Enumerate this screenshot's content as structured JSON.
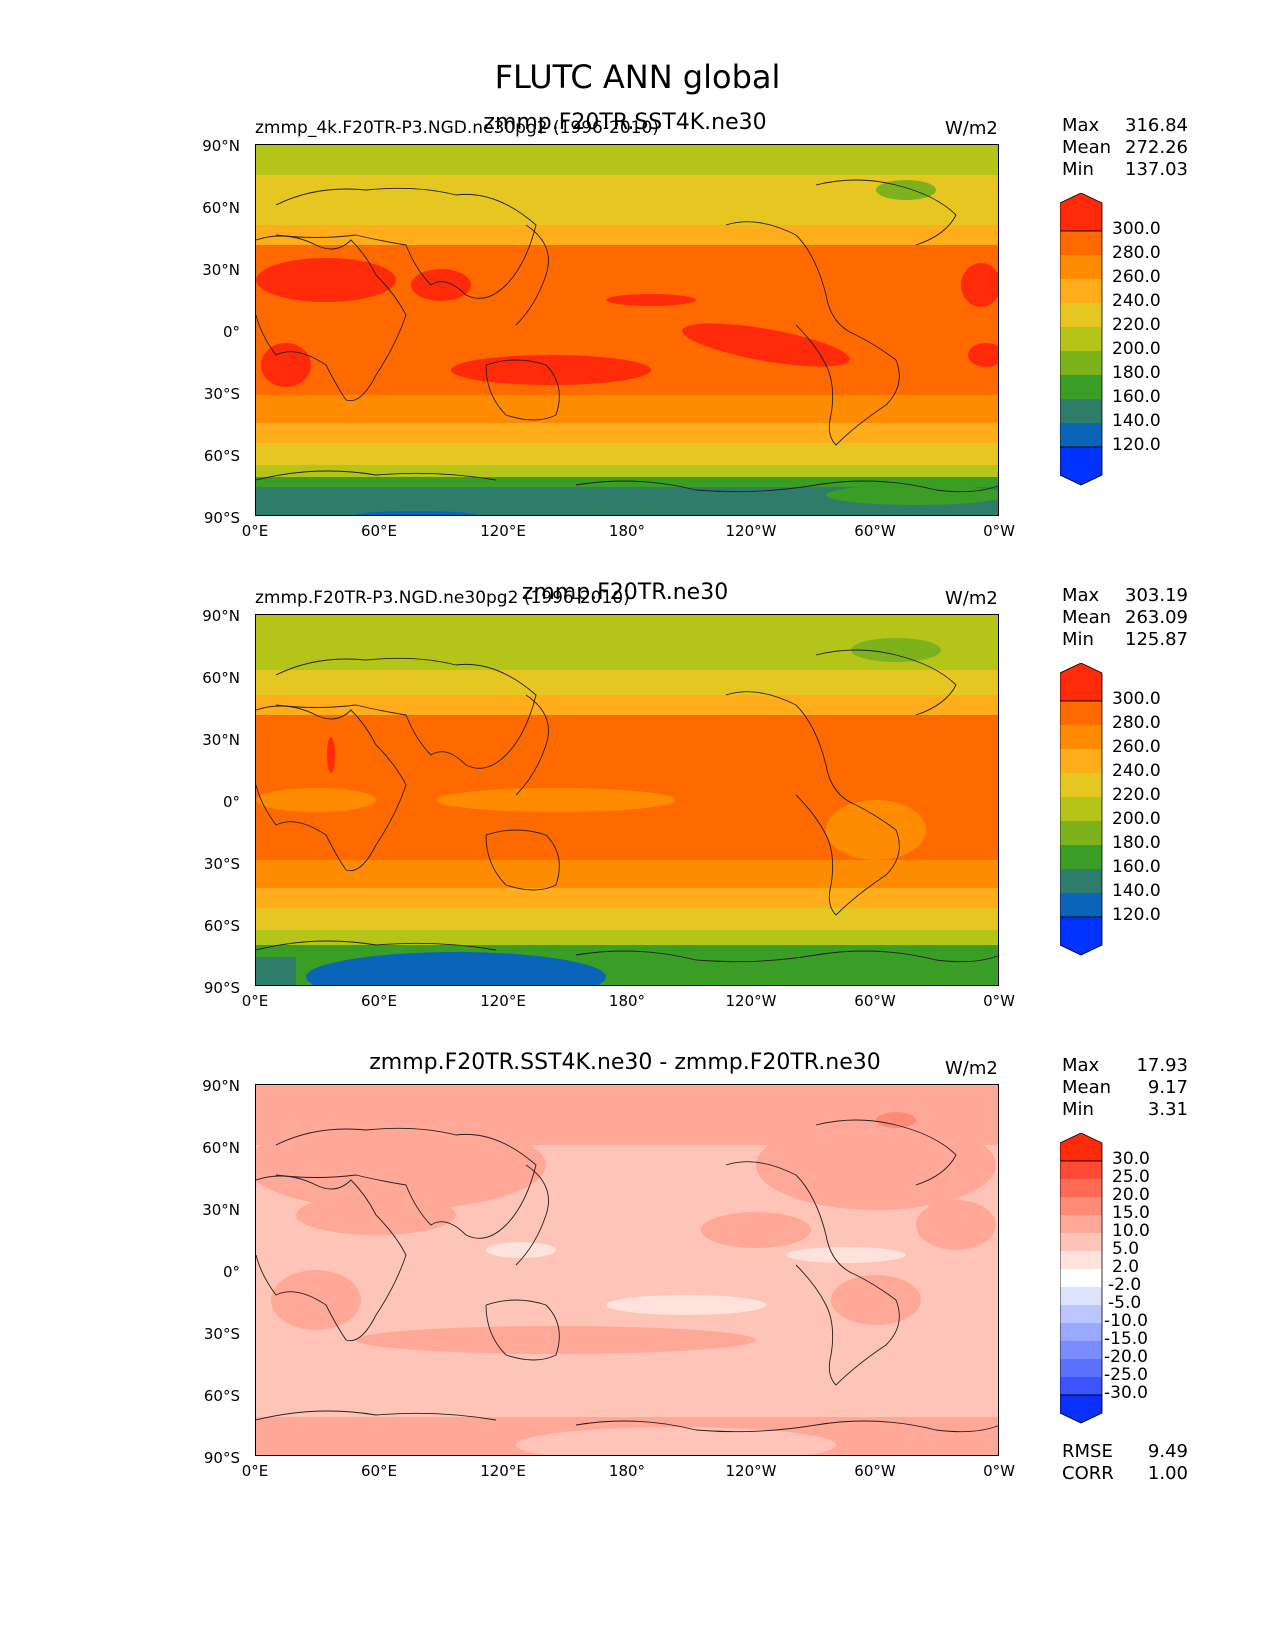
{
  "figure": {
    "title": "FLUTC ANN global"
  },
  "axes": {
    "lat_ticks": [
      "90°N",
      "60°N",
      "30°N",
      "0°",
      "30°S",
      "60°S",
      "90°S"
    ],
    "lon_ticks": [
      "0°E",
      "60°E",
      "120°E",
      "180°",
      "120°W",
      "60°W",
      "0°W"
    ]
  },
  "panels": [
    {
      "id": "test",
      "left_title": "zmmp_4k.F20TR-P3.NGD.ne30pg2 (1996-2010)",
      "center_title": "zmmp.F20TR.SST4K.ne30",
      "units": "W/m2",
      "stats": [
        {
          "label": "Max",
          "value": "316.84"
        },
        {
          "label": "Mean",
          "value": "272.26"
        },
        {
          "label": "Min",
          "value": "137.03"
        }
      ],
      "colorbar": {
        "levels": [
          "300.0",
          "280.0",
          "260.0",
          "240.0",
          "220.0",
          "200.0",
          "180.0",
          "160.0",
          "140.0",
          "120.0"
        ],
        "colors": [
          "#ff2a0a",
          "#ff6a00",
          "#ff8c00",
          "#ffad1a",
          "#e6c620",
          "#b5c418",
          "#7db21c",
          "#3a9e26",
          "#2e7d6a",
          "#0a64b8",
          "#0033ff"
        ]
      },
      "field_levels": [
        "#ff2a0a",
        "#ff6a00",
        "#ff8c00",
        "#ffad1a",
        "#e6c620",
        "#b5c418",
        "#7db21c",
        "#3a9e26",
        "#2e7d6a",
        "#0a64b8"
      ]
    },
    {
      "id": "ref",
      "left_title": "zmmp.F20TR-P3.NGD.ne30pg2 (1996-2010)",
      "center_title": "zmmp.F20TR.ne30",
      "units": "W/m2",
      "stats": [
        {
          "label": "Max",
          "value": "303.19"
        },
        {
          "label": "Mean",
          "value": "263.09"
        },
        {
          "label": "Min",
          "value": "125.87"
        }
      ],
      "colorbar": {
        "levels": [
          "300.0",
          "280.0",
          "260.0",
          "240.0",
          "220.0",
          "200.0",
          "180.0",
          "160.0",
          "140.0",
          "120.0"
        ],
        "colors": [
          "#ff2a0a",
          "#ff6a00",
          "#ff8c00",
          "#ffad1a",
          "#e6c620",
          "#b5c418",
          "#7db21c",
          "#3a9e26",
          "#2e7d6a",
          "#0a64b8",
          "#0033ff"
        ]
      }
    },
    {
      "id": "diff",
      "left_title": "",
      "center_title": "zmmp.F20TR.SST4K.ne30 - zmmp.F20TR.ne30",
      "units": "W/m2",
      "stats": [
        {
          "label": "Max",
          "value": "17.93"
        },
        {
          "label": "Mean",
          "value": "9.17"
        },
        {
          "label": "Min",
          "value": "3.31"
        }
      ],
      "colorbar": {
        "levels": [
          "30.0",
          "25.0",
          "20.0",
          "15.0",
          "10.0",
          "5.0",
          "2.0",
          "-2.0",
          "-5.0",
          "-10.0",
          "-15.0",
          "-20.0",
          "-25.0",
          "-30.0"
        ],
        "colors": [
          "#ff2a0a",
          "#ff4a35",
          "#ff6a55",
          "#ff8a75",
          "#ffa898",
          "#ffc4b8",
          "#ffe2dc",
          "#ffffff",
          "#dde2ff",
          "#bcc5ff",
          "#9aa8ff",
          "#7b8cff",
          "#5a70ff",
          "#3a55ff",
          "#0a30ff"
        ]
      },
      "extra_stats": [
        {
          "label": "RMSE",
          "value": "9.49"
        },
        {
          "label": "CORR",
          "value": "1.00"
        }
      ]
    }
  ]
}
